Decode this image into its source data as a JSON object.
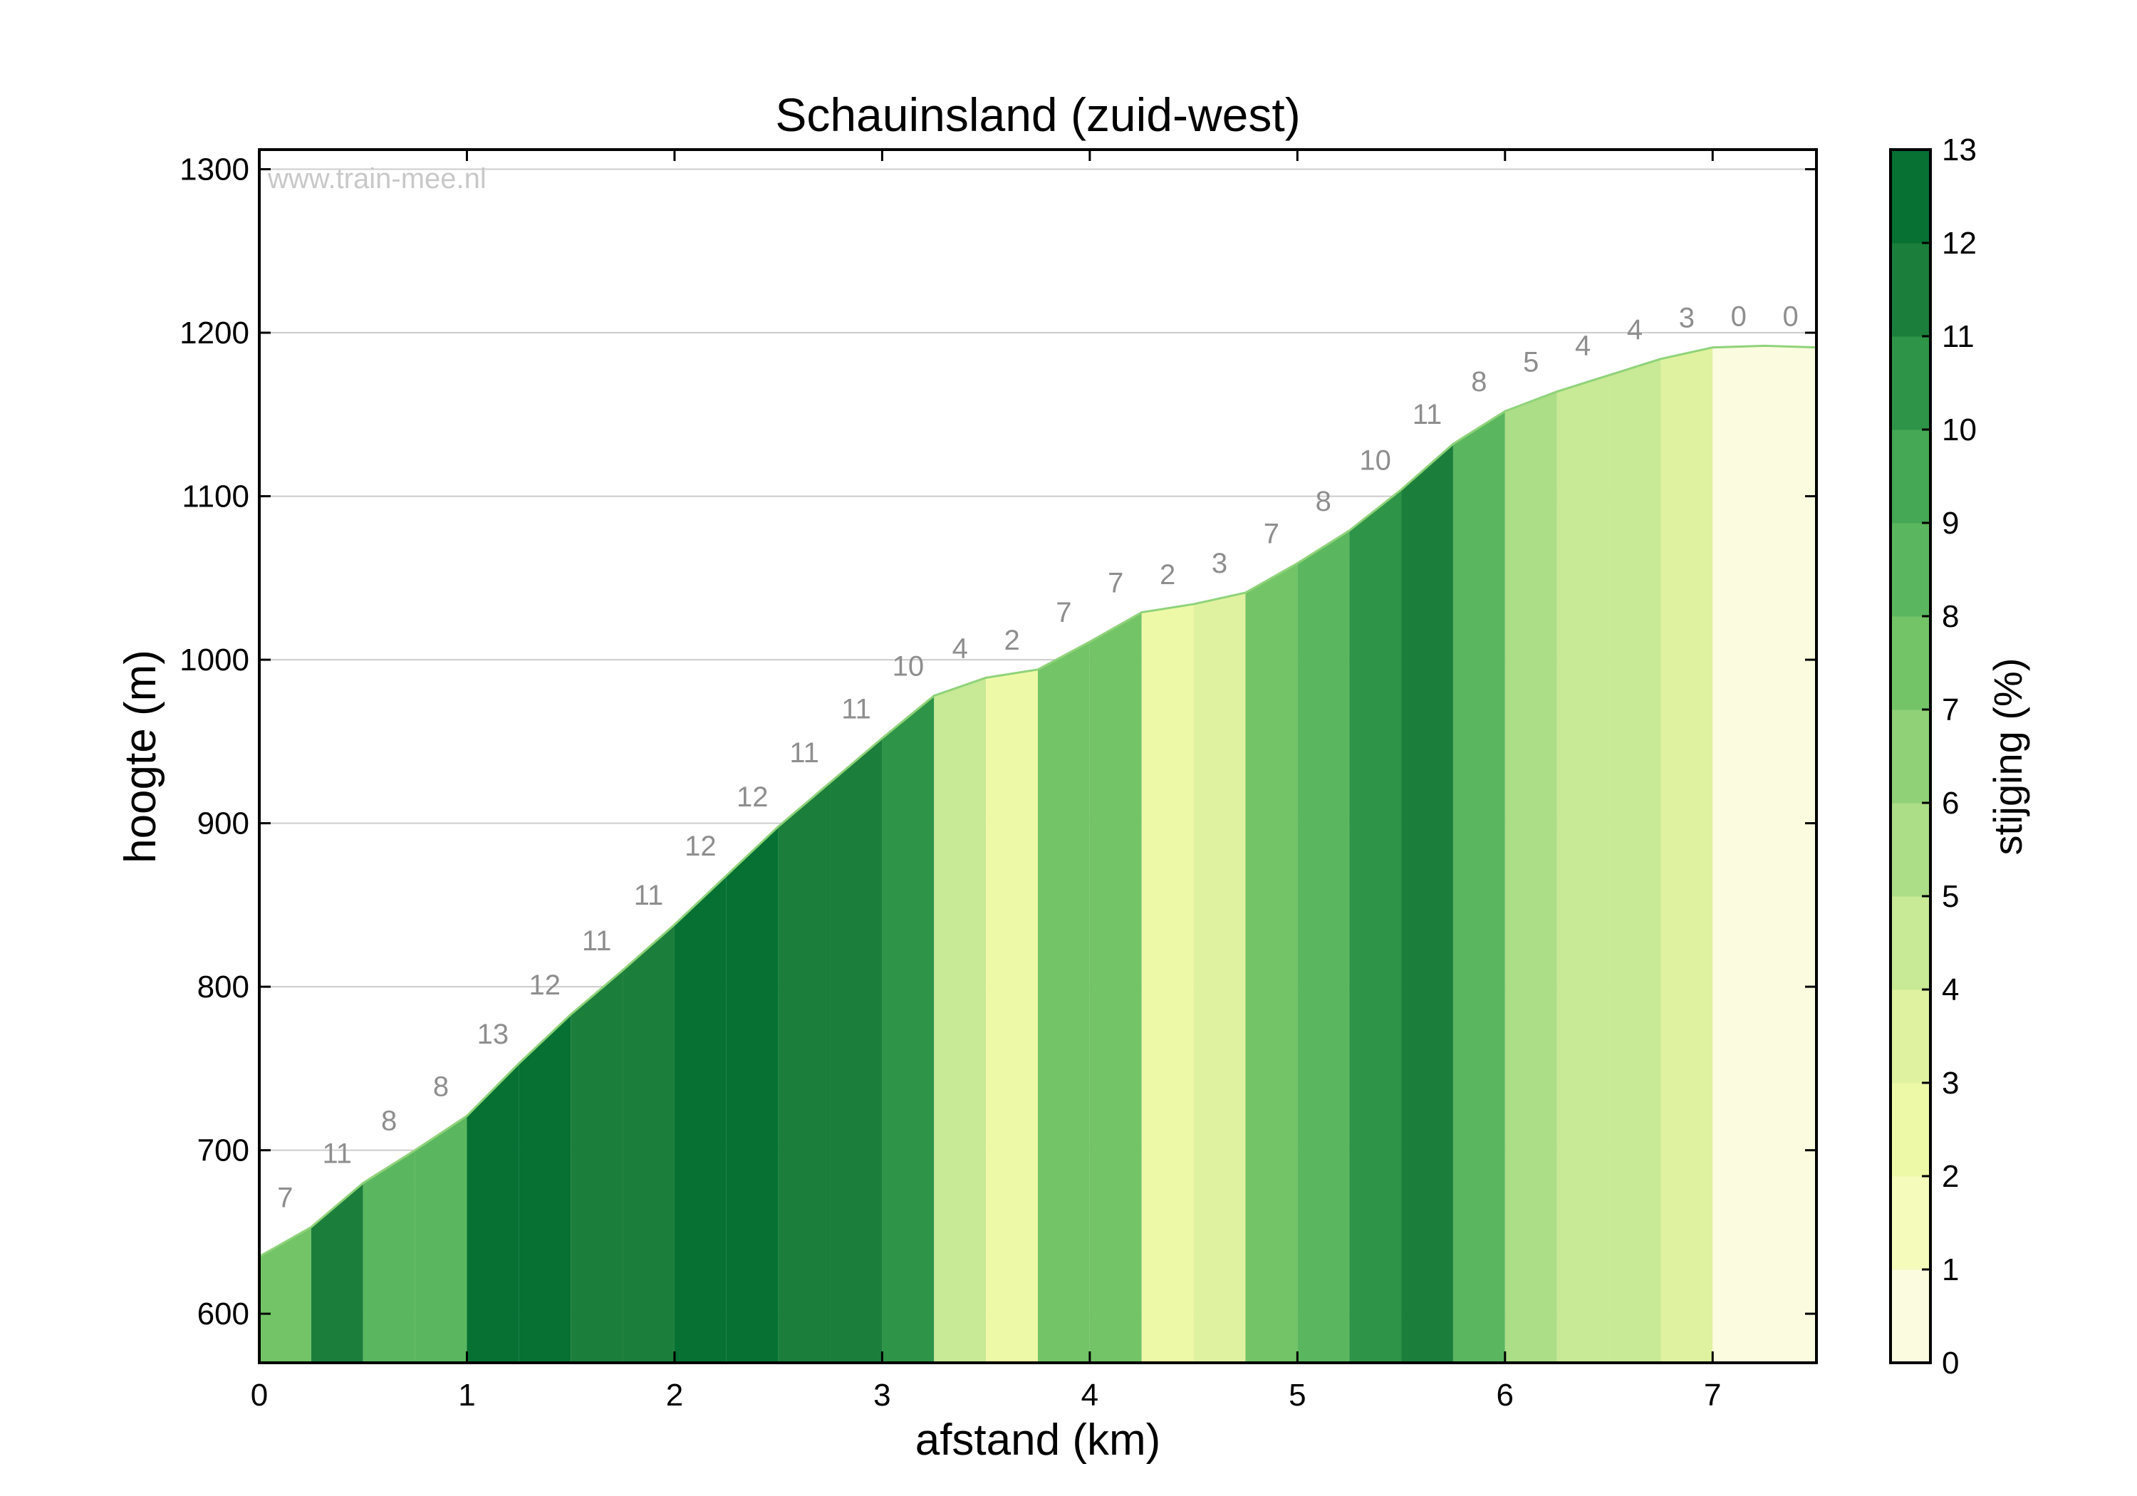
{
  "chart_data": {
    "type": "area",
    "title": "Schauinsland (zuid-west)",
    "xlabel": "afstand (km)",
    "ylabel": "hoogte (m)",
    "colorbar_label": "stijging (%)",
    "watermark": "www.train-mee.nl",
    "xlim": [
      0,
      7.5
    ],
    "ylim": [
      570,
      1312
    ],
    "xticks": [
      0,
      1,
      2,
      3,
      4,
      5,
      6,
      7
    ],
    "yticks": [
      600,
      700,
      800,
      900,
      1000,
      1100,
      1200,
      1300
    ],
    "colorbar_ticks": [
      0,
      1,
      2,
      3,
      4,
      5,
      6,
      7,
      8,
      9,
      10,
      11,
      12,
      13
    ],
    "grid": "horizontal",
    "x": [
      0,
      0.25,
      0.5,
      0.75,
      1.0,
      1.25,
      1.5,
      1.75,
      2.0,
      2.25,
      2.5,
      2.75,
      3.0,
      3.25,
      3.5,
      3.75,
      4.0,
      4.25,
      4.5,
      4.75,
      5.0,
      5.25,
      5.5,
      5.75,
      6.0,
      6.25,
      6.5,
      6.75,
      7.0,
      7.25,
      7.5
    ],
    "elevation": [
      635,
      653,
      680,
      700,
      721,
      753,
      783,
      810,
      838,
      868,
      898,
      925,
      952,
      978,
      989,
      994,
      1011,
      1029,
      1034,
      1041,
      1059,
      1079,
      1104,
      1132,
      1152,
      1164,
      1174,
      1184,
      1191,
      1192,
      1191
    ],
    "gradient_pct": [
      7,
      11,
      8,
      8,
      13,
      12,
      11,
      11,
      12,
      12,
      11,
      11,
      10,
      4,
      2,
      7,
      7,
      2,
      3,
      7,
      8,
      10,
      11,
      8,
      5,
      4,
      4,
      3,
      0,
      0
    ],
    "gradient_labels": [
      "7",
      "11",
      "8",
      "8",
      "13",
      "12",
      "11",
      "11",
      "12",
      "12",
      "11",
      "11",
      "10",
      "4",
      "2",
      "7",
      "7",
      "2",
      "3",
      "7",
      "8",
      "10",
      "11",
      "8",
      "5",
      "4",
      "4",
      "3",
      "0",
      "0"
    ],
    "colorscale": [
      "#fbfbdf",
      "#f4fbbb",
      "#eef9a7",
      "#dff2a0",
      "#c8e995",
      "#acdd87",
      "#90d077",
      "#73c467",
      "#5bb75f",
      "#44a854",
      "#2e9447",
      "#1c7e3b",
      "#067133"
    ]
  }
}
